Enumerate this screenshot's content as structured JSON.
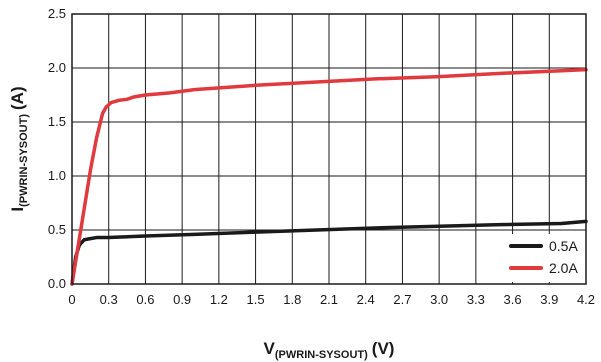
{
  "chart_data": {
    "type": "line",
    "xlabel": {
      "main": "V",
      "sub": "(PWRIN-SYSOUT)",
      "unit": "(V)"
    },
    "ylabel": {
      "main": "I",
      "sub": "(PWRIN-SYSOUT)",
      "unit": "(A)"
    },
    "xlim": [
      0,
      4.2
    ],
    "ylim": [
      0,
      2.5
    ],
    "x_ticks": [
      "0",
      "0.3",
      "0.6",
      "0.9",
      "1.2",
      "1.5",
      "1.8",
      "2.1",
      "2.4",
      "2.7",
      "3.0",
      "3.3",
      "3.6",
      "3.9",
      "4.2"
    ],
    "x_tick_values": [
      0,
      0.3,
      0.6,
      0.9,
      1.2,
      1.5,
      1.8,
      2.1,
      2.4,
      2.7,
      3.0,
      3.3,
      3.6,
      3.9,
      4.2
    ],
    "y_ticks": [
      "0.0",
      "0.5",
      "1.0",
      "1.5",
      "2.0",
      "2.5"
    ],
    "y_tick_values": [
      0,
      0.5,
      1.0,
      1.5,
      2.0,
      2.5
    ],
    "grid": true,
    "legend_position": "bottom-right",
    "series": [
      {
        "name": "0.5A",
        "color": "#1a1a1a",
        "x": [
          0,
          0.03,
          0.06,
          0.1,
          0.15,
          0.2,
          0.3,
          0.4,
          0.6,
          1.0,
          1.5,
          2.0,
          2.5,
          3.0,
          3.5,
          4.0,
          4.2
        ],
        "y": [
          0,
          0.25,
          0.36,
          0.41,
          0.42,
          0.43,
          0.43,
          0.435,
          0.445,
          0.46,
          0.48,
          0.5,
          0.52,
          0.535,
          0.55,
          0.56,
          0.58
        ]
      },
      {
        "name": "2.0A",
        "color": "#e03a3e",
        "x": [
          0,
          0.05,
          0.1,
          0.15,
          0.2,
          0.25,
          0.28,
          0.32,
          0.38,
          0.45,
          0.5,
          0.6,
          0.8,
          1.0,
          1.5,
          2.0,
          2.5,
          3.0,
          3.5,
          4.0,
          4.2
        ],
        "y": [
          0,
          0.35,
          0.7,
          1.05,
          1.35,
          1.58,
          1.64,
          1.68,
          1.7,
          1.71,
          1.73,
          1.75,
          1.77,
          1.8,
          1.84,
          1.87,
          1.9,
          1.92,
          1.95,
          1.975,
          1.985
        ]
      }
    ]
  }
}
